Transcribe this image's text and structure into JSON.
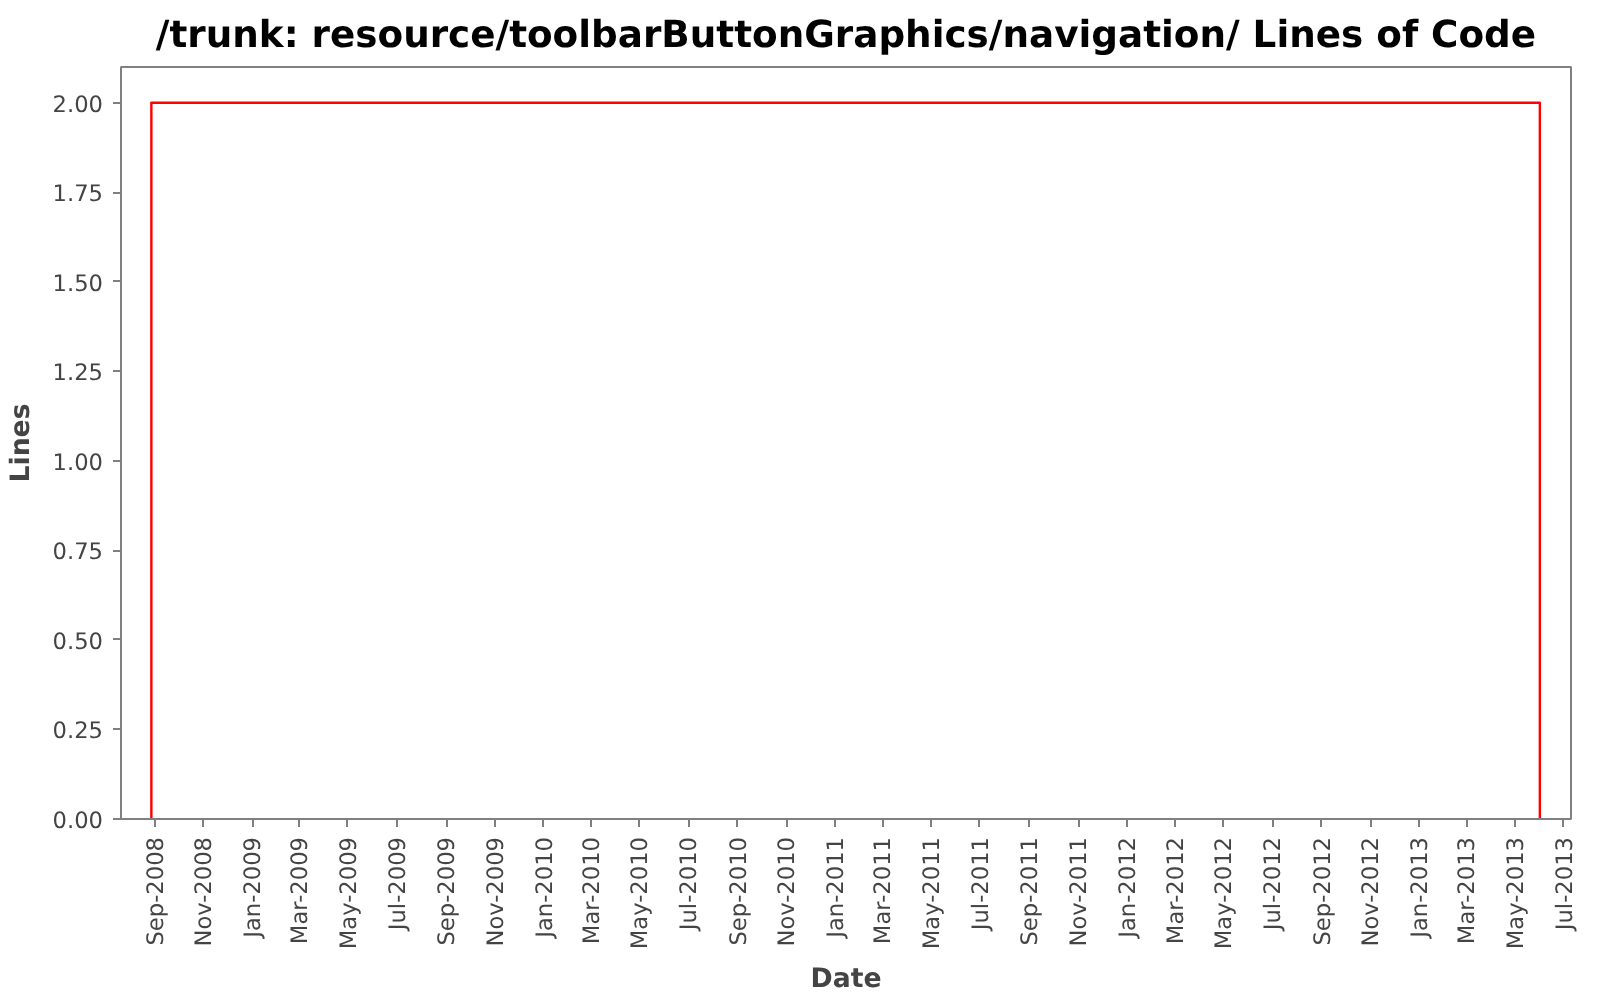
{
  "chart_data": {
    "type": "line",
    "title": "/trunk: resource/toolbarButtonGraphics/navigation/ Lines of Code",
    "xlabel": "Date",
    "ylabel": "Lines",
    "x": [
      "2008-08-28",
      "2008-08-28",
      "2013-06-01",
      "2013-06-01"
    ],
    "series": [
      {
        "color": "#ff0000",
        "values": [
          0,
          2,
          2,
          0
        ]
      }
    ],
    "xlim": [
      "2008-07-21",
      "2013-07-10"
    ],
    "xticks": [
      {
        "value": "2008-09-01",
        "label": "Sep-2008"
      },
      {
        "value": "2008-11-01",
        "label": "Nov-2008"
      },
      {
        "value": "2009-01-01",
        "label": "Jan-2009"
      },
      {
        "value": "2009-03-01",
        "label": "Mar-2009"
      },
      {
        "value": "2009-05-01",
        "label": "May-2009"
      },
      {
        "value": "2009-07-01",
        "label": "Jul-2009"
      },
      {
        "value": "2009-09-01",
        "label": "Sep-2009"
      },
      {
        "value": "2009-11-01",
        "label": "Nov-2009"
      },
      {
        "value": "2010-01-01",
        "label": "Jan-2010"
      },
      {
        "value": "2010-03-01",
        "label": "Mar-2010"
      },
      {
        "value": "2010-05-01",
        "label": "May-2010"
      },
      {
        "value": "2010-07-01",
        "label": "Jul-2010"
      },
      {
        "value": "2010-09-01",
        "label": "Sep-2010"
      },
      {
        "value": "2010-11-01",
        "label": "Nov-2010"
      },
      {
        "value": "2011-01-01",
        "label": "Jan-2011"
      },
      {
        "value": "2011-03-01",
        "label": "Mar-2011"
      },
      {
        "value": "2011-05-01",
        "label": "May-2011"
      },
      {
        "value": "2011-07-01",
        "label": "Jul-2011"
      },
      {
        "value": "2011-09-01",
        "label": "Sep-2011"
      },
      {
        "value": "2011-11-01",
        "label": "Nov-2011"
      },
      {
        "value": "2012-01-01",
        "label": "Jan-2012"
      },
      {
        "value": "2012-03-01",
        "label": "Mar-2012"
      },
      {
        "value": "2012-05-01",
        "label": "May-2012"
      },
      {
        "value": "2012-07-01",
        "label": "Jul-2012"
      },
      {
        "value": "2012-09-01",
        "label": "Sep-2012"
      },
      {
        "value": "2012-11-01",
        "label": "Nov-2012"
      },
      {
        "value": "2013-01-01",
        "label": "Jan-2013"
      },
      {
        "value": "2013-03-01",
        "label": "Mar-2013"
      },
      {
        "value": "2013-05-01",
        "label": "May-2013"
      },
      {
        "value": "2013-07-01",
        "label": "Jul-2013"
      }
    ],
    "ylim": [
      0,
      2.1
    ],
    "yticks": [
      {
        "value": 0,
        "label": "0.00"
      },
      {
        "value": 0.25,
        "label": "0.25"
      },
      {
        "value": 0.5,
        "label": "0.50"
      },
      {
        "value": 0.75,
        "label": "0.75"
      },
      {
        "value": 1,
        "label": "1.00"
      },
      {
        "value": 1.25,
        "label": "1.25"
      },
      {
        "value": 1.5,
        "label": "1.50"
      },
      {
        "value": 1.75,
        "label": "1.75"
      },
      {
        "value": 2,
        "label": "2.00"
      }
    ],
    "grid": false,
    "marker": "none",
    "line_style": "solid"
  }
}
